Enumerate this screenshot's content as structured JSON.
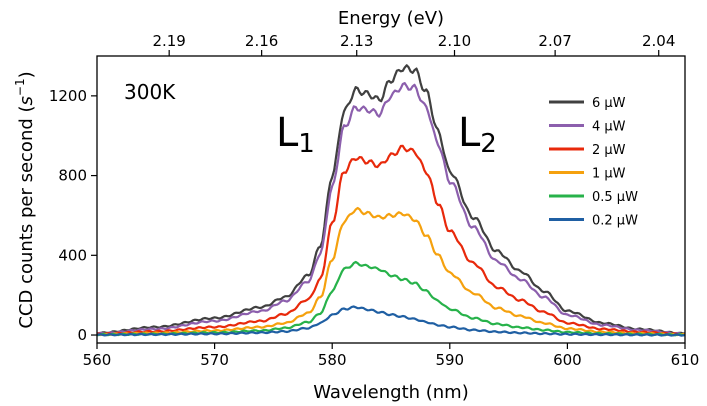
{
  "chart_data": {
    "type": "line",
    "xlabel": "Wavelength (nm)",
    "ylabel_main": "CCD counts per second (",
    "ylabel_base": "s",
    "ylabel_exp": "−1",
    "ylabel_close": ")",
    "top_axis_label": "Energy (eV)",
    "xlim": [
      560,
      610
    ],
    "ylim": [
      -40,
      1400
    ],
    "x_ticks": [
      560,
      570,
      580,
      590,
      600,
      610
    ],
    "x_tick_labels": [
      "560",
      "570",
      "580",
      "590",
      "600",
      "610"
    ],
    "y_ticks": [
      0,
      400,
      800,
      1200
    ],
    "y_tick_labels": [
      "0",
      "400",
      "800",
      "1200"
    ],
    "top_ticks": [
      2.19,
      2.16,
      2.13,
      2.1,
      2.07,
      2.04
    ],
    "top_tick_labels": [
      "2.19",
      "2.16",
      "2.13",
      "2.10",
      "2.07",
      "2.04"
    ],
    "legend_position": "right",
    "grid": false,
    "annotations": {
      "temperature": "300K",
      "peak1_main": "L",
      "peak1_sub": "1",
      "peak2_main": "L",
      "peak2_sub": "2"
    },
    "x": [
      560,
      565,
      570,
      574,
      576,
      578,
      579,
      580,
      581,
      582,
      583,
      584,
      585,
      586,
      587,
      588,
      589,
      590,
      592,
      594,
      596,
      598,
      600,
      603,
      606,
      610
    ],
    "series": [
      {
        "name": "6 µW",
        "color": "#404040",
        "values": [
          10,
          40,
          85,
          140,
          190,
          300,
          450,
          800,
          1120,
          1230,
          1210,
          1180,
          1280,
          1340,
          1330,
          1220,
          1020,
          820,
          590,
          420,
          320,
          220,
          120,
          60,
          30,
          8
        ]
      },
      {
        "name": "4 µW",
        "color": "#8c5fad",
        "values": [
          8,
          30,
          70,
          120,
          170,
          270,
          410,
          740,
          1040,
          1140,
          1130,
          1110,
          1200,
          1250,
          1240,
          1140,
          960,
          770,
          540,
          370,
          280,
          190,
          100,
          50,
          25,
          6
        ]
      },
      {
        "name": "2 µW",
        "color": "#e8290b",
        "values": [
          5,
          18,
          40,
          70,
          105,
          180,
          280,
          560,
          820,
          890,
          870,
          850,
          900,
          940,
          920,
          820,
          660,
          520,
          360,
          240,
          175,
          115,
          60,
          30,
          15,
          4
        ]
      },
      {
        "name": "1 µW",
        "color": "#f5a10e",
        "values": [
          3,
          10,
          22,
          40,
          60,
          110,
          190,
          380,
          570,
          630,
          610,
          590,
          600,
          610,
          580,
          500,
          400,
          310,
          210,
          135,
          95,
          60,
          32,
          15,
          8,
          2
        ]
      },
      {
        "name": "0.5 µW",
        "color": "#27b24a",
        "values": [
          2,
          5,
          12,
          22,
          35,
          65,
          110,
          220,
          330,
          360,
          345,
          330,
          300,
          280,
          260,
          220,
          170,
          130,
          85,
          55,
          38,
          25,
          14,
          7,
          4,
          1
        ]
      },
      {
        "name": "0.2 µW",
        "color": "#1f5fa3",
        "values": [
          1,
          3,
          6,
          12,
          18,
          35,
          60,
          100,
          130,
          140,
          128,
          115,
          102,
          92,
          80,
          65,
          50,
          40,
          25,
          16,
          11,
          7,
          4,
          2,
          1,
          0
        ]
      }
    ]
  }
}
